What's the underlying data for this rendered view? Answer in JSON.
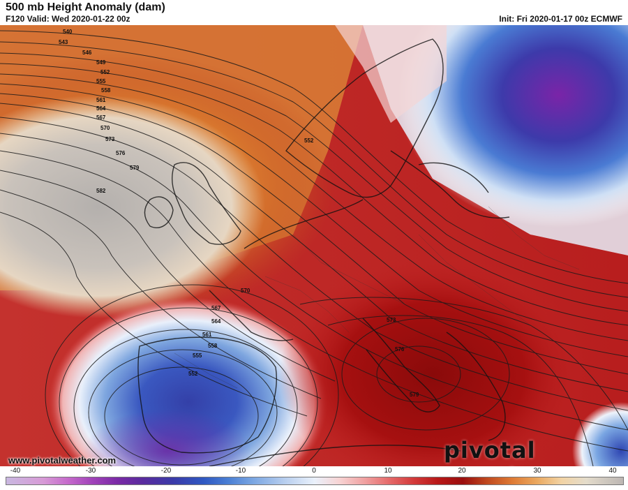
{
  "header": {
    "title": "500 mb Height Anomaly (dam)",
    "valid": "F120 Valid: Wed 2020-01-22 00z",
    "init": "Init: Fri 2020-01-17 00z ECMWF"
  },
  "footer": {
    "url": "www.pivotalweather.com",
    "brand": "pivotal weather"
  },
  "contour_labels": [
    "540",
    "543",
    "546",
    "549",
    "552",
    "555",
    "558",
    "561",
    "564",
    "567",
    "570",
    "573",
    "576",
    "579",
    "582",
    "552",
    "570",
    "567",
    "564",
    "561",
    "558",
    "555",
    "552",
    "573",
    "576",
    "579"
  ],
  "colorbar": {
    "ticks": [
      "-40",
      "-30",
      "-20",
      "-10",
      "0",
      "10",
      "20",
      "30",
      "40"
    ]
  },
  "colors": {
    "positive_core": "#a10c0c",
    "positive_mid": "#d63a3a",
    "negative_core": "#3b39b0",
    "negative_outer": "#7a2aa6",
    "ridge_tan": "#e3cfb8"
  }
}
